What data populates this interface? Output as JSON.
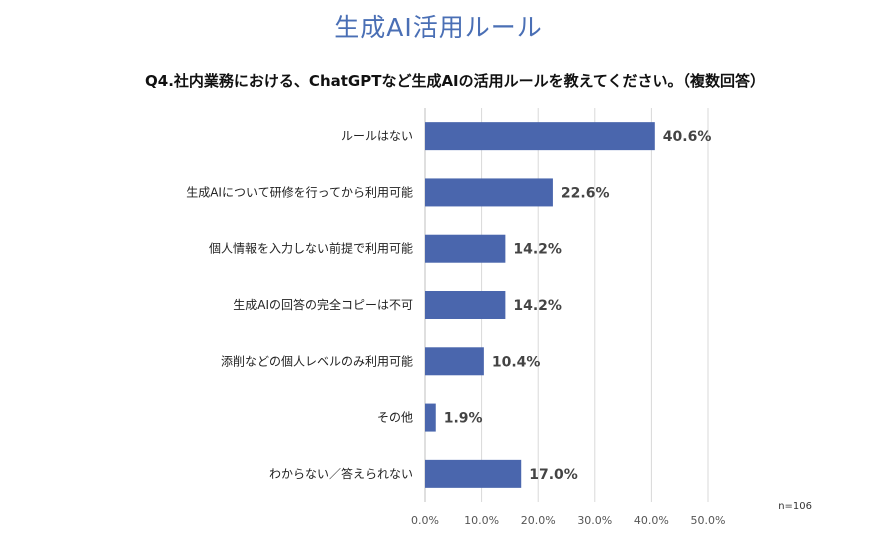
{
  "chart_data": {
    "type": "bar",
    "orientation": "horizontal",
    "title": "生成AI活用ルール",
    "subtitle": "Q4.社内業務における、ChatGPTなど生成AIの活用ルールを教えてください。（複数回答）",
    "categories": [
      "ルールはない",
      "生成AIについて研修を行ってから利用可能",
      "個人情報を入力しない前提で利用可能",
      "生成AIの回答の完全コピーは不可",
      "添削などの個人レベルのみ利用可能",
      "その他",
      "わからない／答えられない"
    ],
    "values": [
      40.6,
      22.6,
      14.2,
      14.2,
      10.4,
      1.9,
      17.0
    ],
    "value_labels": [
      "40.6%",
      "22.6%",
      "14.2%",
      "14.2%",
      "10.4%",
      "1.9%",
      "17.0%"
    ],
    "xlim": [
      0,
      50
    ],
    "xticks": [
      "0.0%",
      "10.0%",
      "20.0%",
      "30.0%",
      "40.0%",
      "50.0%"
    ],
    "grid": true,
    "bar_color": "#4a66ad",
    "note": "n=106"
  }
}
